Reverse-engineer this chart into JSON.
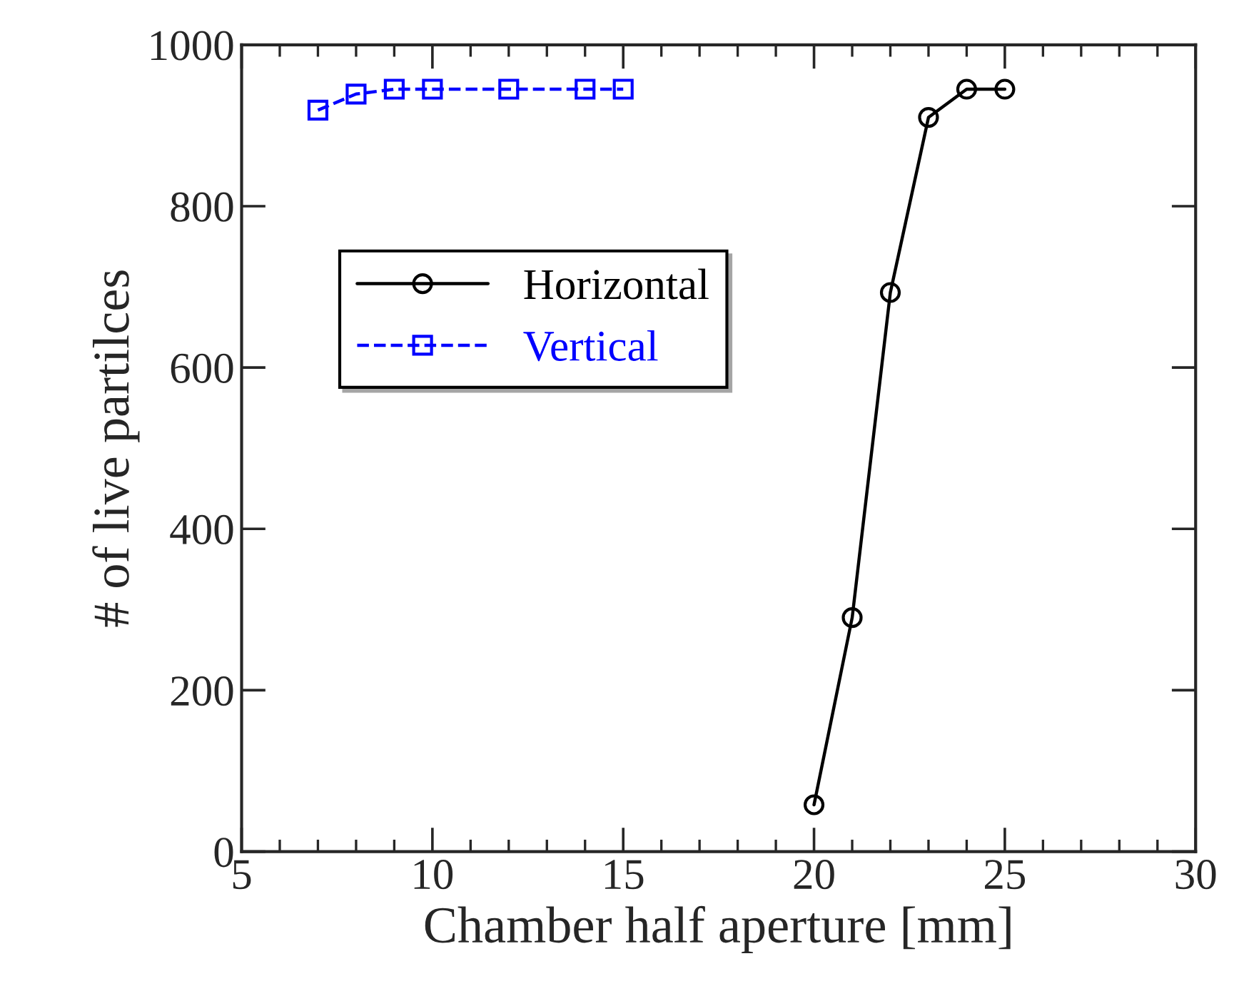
{
  "chart_data": {
    "type": "line",
    "xlabel": "Chamber half aperture [mm]",
    "ylabel": "# of live partilces",
    "xlim": [
      5,
      30
    ],
    "xticks": [
      5,
      10,
      15,
      20,
      25,
      30
    ],
    "ylim": [
      0,
      1000
    ],
    "yticks": [
      0,
      200,
      400,
      600,
      800,
      1000
    ],
    "grid": false,
    "legend": "left",
    "series": [
      {
        "name": "Horizontal",
        "color": "#000000",
        "marker": "circle",
        "line_style": "solid",
        "x": [
          20,
          21,
          22,
          23,
          24,
          25
        ],
        "values": [
          58,
          290,
          693,
          910,
          945,
          945
        ]
      },
      {
        "name": "Vertical",
        "color": "#0000ff",
        "marker": "square",
        "line_style": "dashed",
        "x": [
          7,
          8,
          9,
          10,
          12,
          14,
          15
        ],
        "values": [
          919,
          939,
          945,
          945,
          945,
          945,
          945
        ]
      }
    ]
  }
}
